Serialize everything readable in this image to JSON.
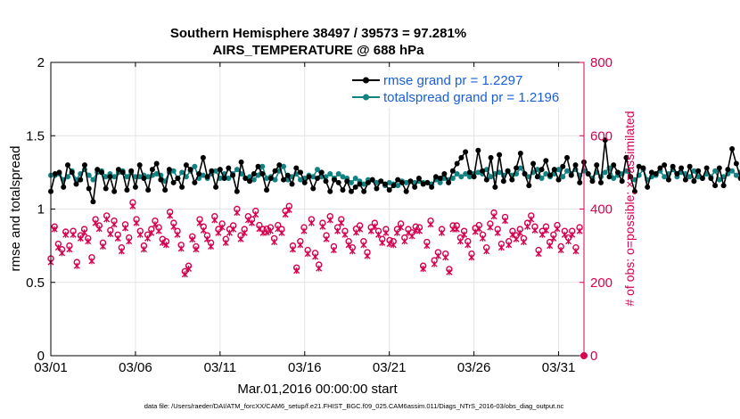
{
  "chart_data": {
    "type": "line",
    "title": "Southern Hemisphere 38497 / 39573 = 97.281%",
    "subtitle": "AIRS_TEMPERATURE @ 688 hPa",
    "xlabel": "Mar.01,2016 00:00:00 start",
    "ylabel": "rmse and totalspread",
    "ylabel_right": "# of obs: o=possible; ×=assimilated",
    "footer": "data file: /Users/raeder/DAI/ATM_forcXX/CAM6_setup/f.e21.FHIST_BGC.f09_025.CAM6assim.011/Diags_NTrS_2016-03/obs_diag_output.nc",
    "x_range": [
      1,
      32.5
    ],
    "x_ticks": [
      1,
      6,
      11,
      16,
      21,
      26,
      31
    ],
    "x_tick_labels": [
      "03/01",
      "03/06",
      "03/11",
      "03/16",
      "03/21",
      "03/26",
      "03/31"
    ],
    "ylim": [
      0,
      2
    ],
    "y_ticks": [
      0,
      0.5,
      1,
      1.5,
      2
    ],
    "y_tick_labels": [
      "0",
      "0.5",
      "1",
      "1.5",
      "2"
    ],
    "ylim_right": [
      0,
      800
    ],
    "y_ticks_right": [
      0,
      200,
      400,
      600,
      800
    ],
    "y_tick_labels_right": [
      "0",
      "200",
      "400",
      "600",
      "800"
    ],
    "colors": {
      "rmse": "#000000",
      "spread": "#128282",
      "obs": "#d6004f",
      "legend_text": "#1a5fd8"
    },
    "legend": [
      {
        "name": "rmse grand pr = 1.2297",
        "color": "#000000"
      },
      {
        "name": "totalspread grand pr = 1.2196",
        "color": "#128282"
      }
    ],
    "x_step": 0.25,
    "series": [
      {
        "name": "rmse",
        "values": [
          1.12,
          1.24,
          1.25,
          1.15,
          1.3,
          1.25,
          1.17,
          1.2,
          1.3,
          1.14,
          1.05,
          1.27,
          1.25,
          1.14,
          1.22,
          1.12,
          1.27,
          1.25,
          1.13,
          1.26,
          1.15,
          1.3,
          1.21,
          1.13,
          1.27,
          1.31,
          1.2,
          1.13,
          1.27,
          1.18,
          1.21,
          1.15,
          1.3,
          1.27,
          1.18,
          1.24,
          1.35,
          1.22,
          1.26,
          1.15,
          1.27,
          1.21,
          1.28,
          1.23,
          1.12,
          1.32,
          1.21,
          1.19,
          1.24,
          1.29,
          1.24,
          1.13,
          1.21,
          1.26,
          1.3,
          1.2,
          1.23,
          1.17,
          1.28,
          1.25,
          1.18,
          1.22,
          1.14,
          1.21,
          1.25,
          1.19,
          1.12,
          1.2,
          1.18,
          1.13,
          1.19,
          1.12,
          1.15,
          1.17,
          1.12,
          1.18,
          1.2,
          1.14,
          1.19,
          1.17,
          1.13,
          1.16,
          1.2,
          1.18,
          1.12,
          1.19,
          1.15,
          1.21,
          1.17,
          1.18,
          1.15,
          1.22,
          1.21,
          1.24,
          1.18,
          1.26,
          1.31,
          1.35,
          1.39,
          1.25,
          1.22,
          1.4,
          1.26,
          1.2,
          1.35,
          1.15,
          1.37,
          1.19,
          1.26,
          1.2,
          1.28,
          1.38,
          1.24,
          1.16,
          1.31,
          1.22,
          1.27,
          1.33,
          1.23,
          1.27,
          1.2,
          1.29,
          1.35,
          1.23,
          1.3,
          1.18,
          1.32,
          1.24,
          1.19,
          1.3,
          1.18,
          1.47,
          1.22,
          1.3,
          1.25,
          1.19,
          1.35,
          1.22,
          1.12,
          1.29,
          1.28,
          1.15,
          1.25,
          1.24,
          1.28,
          1.3,
          1.2,
          1.29,
          1.24,
          1.28,
          1.2,
          1.29,
          1.19,
          1.26,
          1.21,
          1.28,
          1.21,
          1.16,
          1.28,
          1.16,
          1.27,
          1.41,
          1.31,
          1.21,
          1.38,
          1.26
        ]
      },
      {
        "name": "totalspread",
        "values": [
          1.23,
          1.23,
          1.24,
          1.2,
          1.22,
          1.26,
          1.2,
          1.24,
          1.27,
          1.23,
          1.2,
          1.25,
          1.26,
          1.22,
          1.24,
          1.22,
          1.25,
          1.26,
          1.22,
          1.25,
          1.22,
          1.22,
          1.23,
          1.22,
          1.23,
          1.24,
          1.23,
          1.19,
          1.25,
          1.26,
          1.21,
          1.25,
          1.22,
          1.26,
          1.29,
          1.21,
          1.23,
          1.21,
          1.24,
          1.26,
          1.21,
          1.24,
          1.21,
          1.24,
          1.27,
          1.24,
          1.21,
          1.22,
          1.2,
          1.23,
          1.29,
          1.21,
          1.22,
          1.2,
          1.26,
          1.29,
          1.2,
          1.22,
          1.24,
          1.2,
          1.21,
          1.23,
          1.22,
          1.27,
          1.22,
          1.22,
          1.24,
          1.21,
          1.24,
          1.22,
          1.21,
          1.18,
          1.21,
          1.19,
          1.17,
          1.2,
          1.2,
          1.18,
          1.19,
          1.16,
          1.18,
          1.17,
          1.16,
          1.19,
          1.18,
          1.19,
          1.18,
          1.19,
          1.18,
          1.18,
          1.17,
          1.2,
          1.18,
          1.21,
          1.2,
          1.21,
          1.24,
          1.22,
          1.24,
          1.22,
          1.24,
          1.25,
          1.24,
          1.27,
          1.22,
          1.24,
          1.25,
          1.23,
          1.26,
          1.23,
          1.24,
          1.28,
          1.24,
          1.22,
          1.25,
          1.27,
          1.21,
          1.24,
          1.22,
          1.24,
          1.27,
          1.22,
          1.26,
          1.24,
          1.27,
          1.23,
          1.26,
          1.24,
          1.21,
          1.25,
          1.22,
          1.25,
          1.28,
          1.21,
          1.23,
          1.24,
          1.26,
          1.22,
          1.2,
          1.23,
          1.27,
          1.2,
          1.22,
          1.23,
          1.26,
          1.22,
          1.24,
          1.27,
          1.22,
          1.25,
          1.24,
          1.22,
          1.26,
          1.22,
          1.21,
          1.24,
          1.22,
          1.26,
          1.2,
          1.22,
          1.24,
          1.26,
          1.23,
          1.25,
          1.22,
          1.24
        ]
      }
    ],
    "obs_possible": [
      265,
      352,
      305,
      290,
      338,
      300,
      340,
      255,
      328,
      345,
      320,
      268,
      372,
      355,
      308,
      382,
      342,
      368,
      330,
      295,
      358,
      322,
      418,
      372,
      340,
      300,
      330,
      345,
      368,
      350,
      318,
      312,
      392,
      362,
      340,
      302,
      230,
      245,
      325,
      298,
      372,
      352,
      328,
      308,
      380,
      345,
      360,
      318,
      345,
      355,
      400,
      328,
      345,
      380,
      372,
      395,
      356,
      345,
      346,
      350,
      320,
      356,
      345,
      395,
      408,
      300,
      240,
      312,
      350,
      288,
      372,
      280,
      248,
      362,
      328,
      380,
      298,
      350,
      372,
      340,
      312,
      295,
      346,
      355,
      312,
      282,
      350,
      362,
      340,
      318,
      345,
      315,
      312,
      345,
      360,
      322,
      345,
      336,
      352,
      350,
      245,
      310,
      368,
      260,
      282,
      345,
      278,
      236,
      355,
      355,
      322,
      340,
      312,
      278,
      348,
      356,
      330,
      295,
      360,
      390,
      345,
      305,
      378,
      312,
      340,
      328,
      345,
      320,
      362,
      382,
      352,
      288,
      340,
      352,
      310,
      330,
      356,
      298,
      340,
      322,
      340,
      295,
      350
    ],
    "obs_assimilated": [
      255,
      345,
      295,
      280,
      330,
      290,
      330,
      245,
      320,
      336,
      312,
      258,
      362,
      346,
      298,
      372,
      332,
      358,
      320,
      285,
      348,
      312,
      408,
      362,
      330,
      290,
      320,
      335,
      358,
      340,
      308,
      302,
      382,
      352,
      330,
      292,
      222,
      237,
      317,
      290,
      362,
      342,
      318,
      298,
      370,
      335,
      350,
      308,
      335,
      345,
      390,
      318,
      335,
      370,
      362,
      385,
      346,
      335,
      336,
      340,
      310,
      346,
      335,
      385,
      398,
      290,
      232,
      302,
      340,
      278,
      362,
      270,
      238,
      352,
      318,
      370,
      288,
      340,
      362,
      330,
      302,
      285,
      336,
      345,
      302,
      272,
      340,
      352,
      330,
      308,
      335,
      305,
      302,
      335,
      350,
      312,
      335,
      326,
      342,
      340,
      237,
      300,
      358,
      250,
      272,
      335,
      268,
      228,
      345,
      345,
      312,
      330,
      302,
      268,
      338,
      346,
      320,
      285,
      350,
      380,
      335,
      295,
      368,
      302,
      330,
      318,
      335,
      310,
      352,
      372,
      342,
      278,
      330,
      342,
      300,
      320,
      346,
      288,
      330,
      312,
      330,
      285,
      340
    ],
    "obs_x_start": 1.0,
    "obs_x_step": 0.22
  }
}
